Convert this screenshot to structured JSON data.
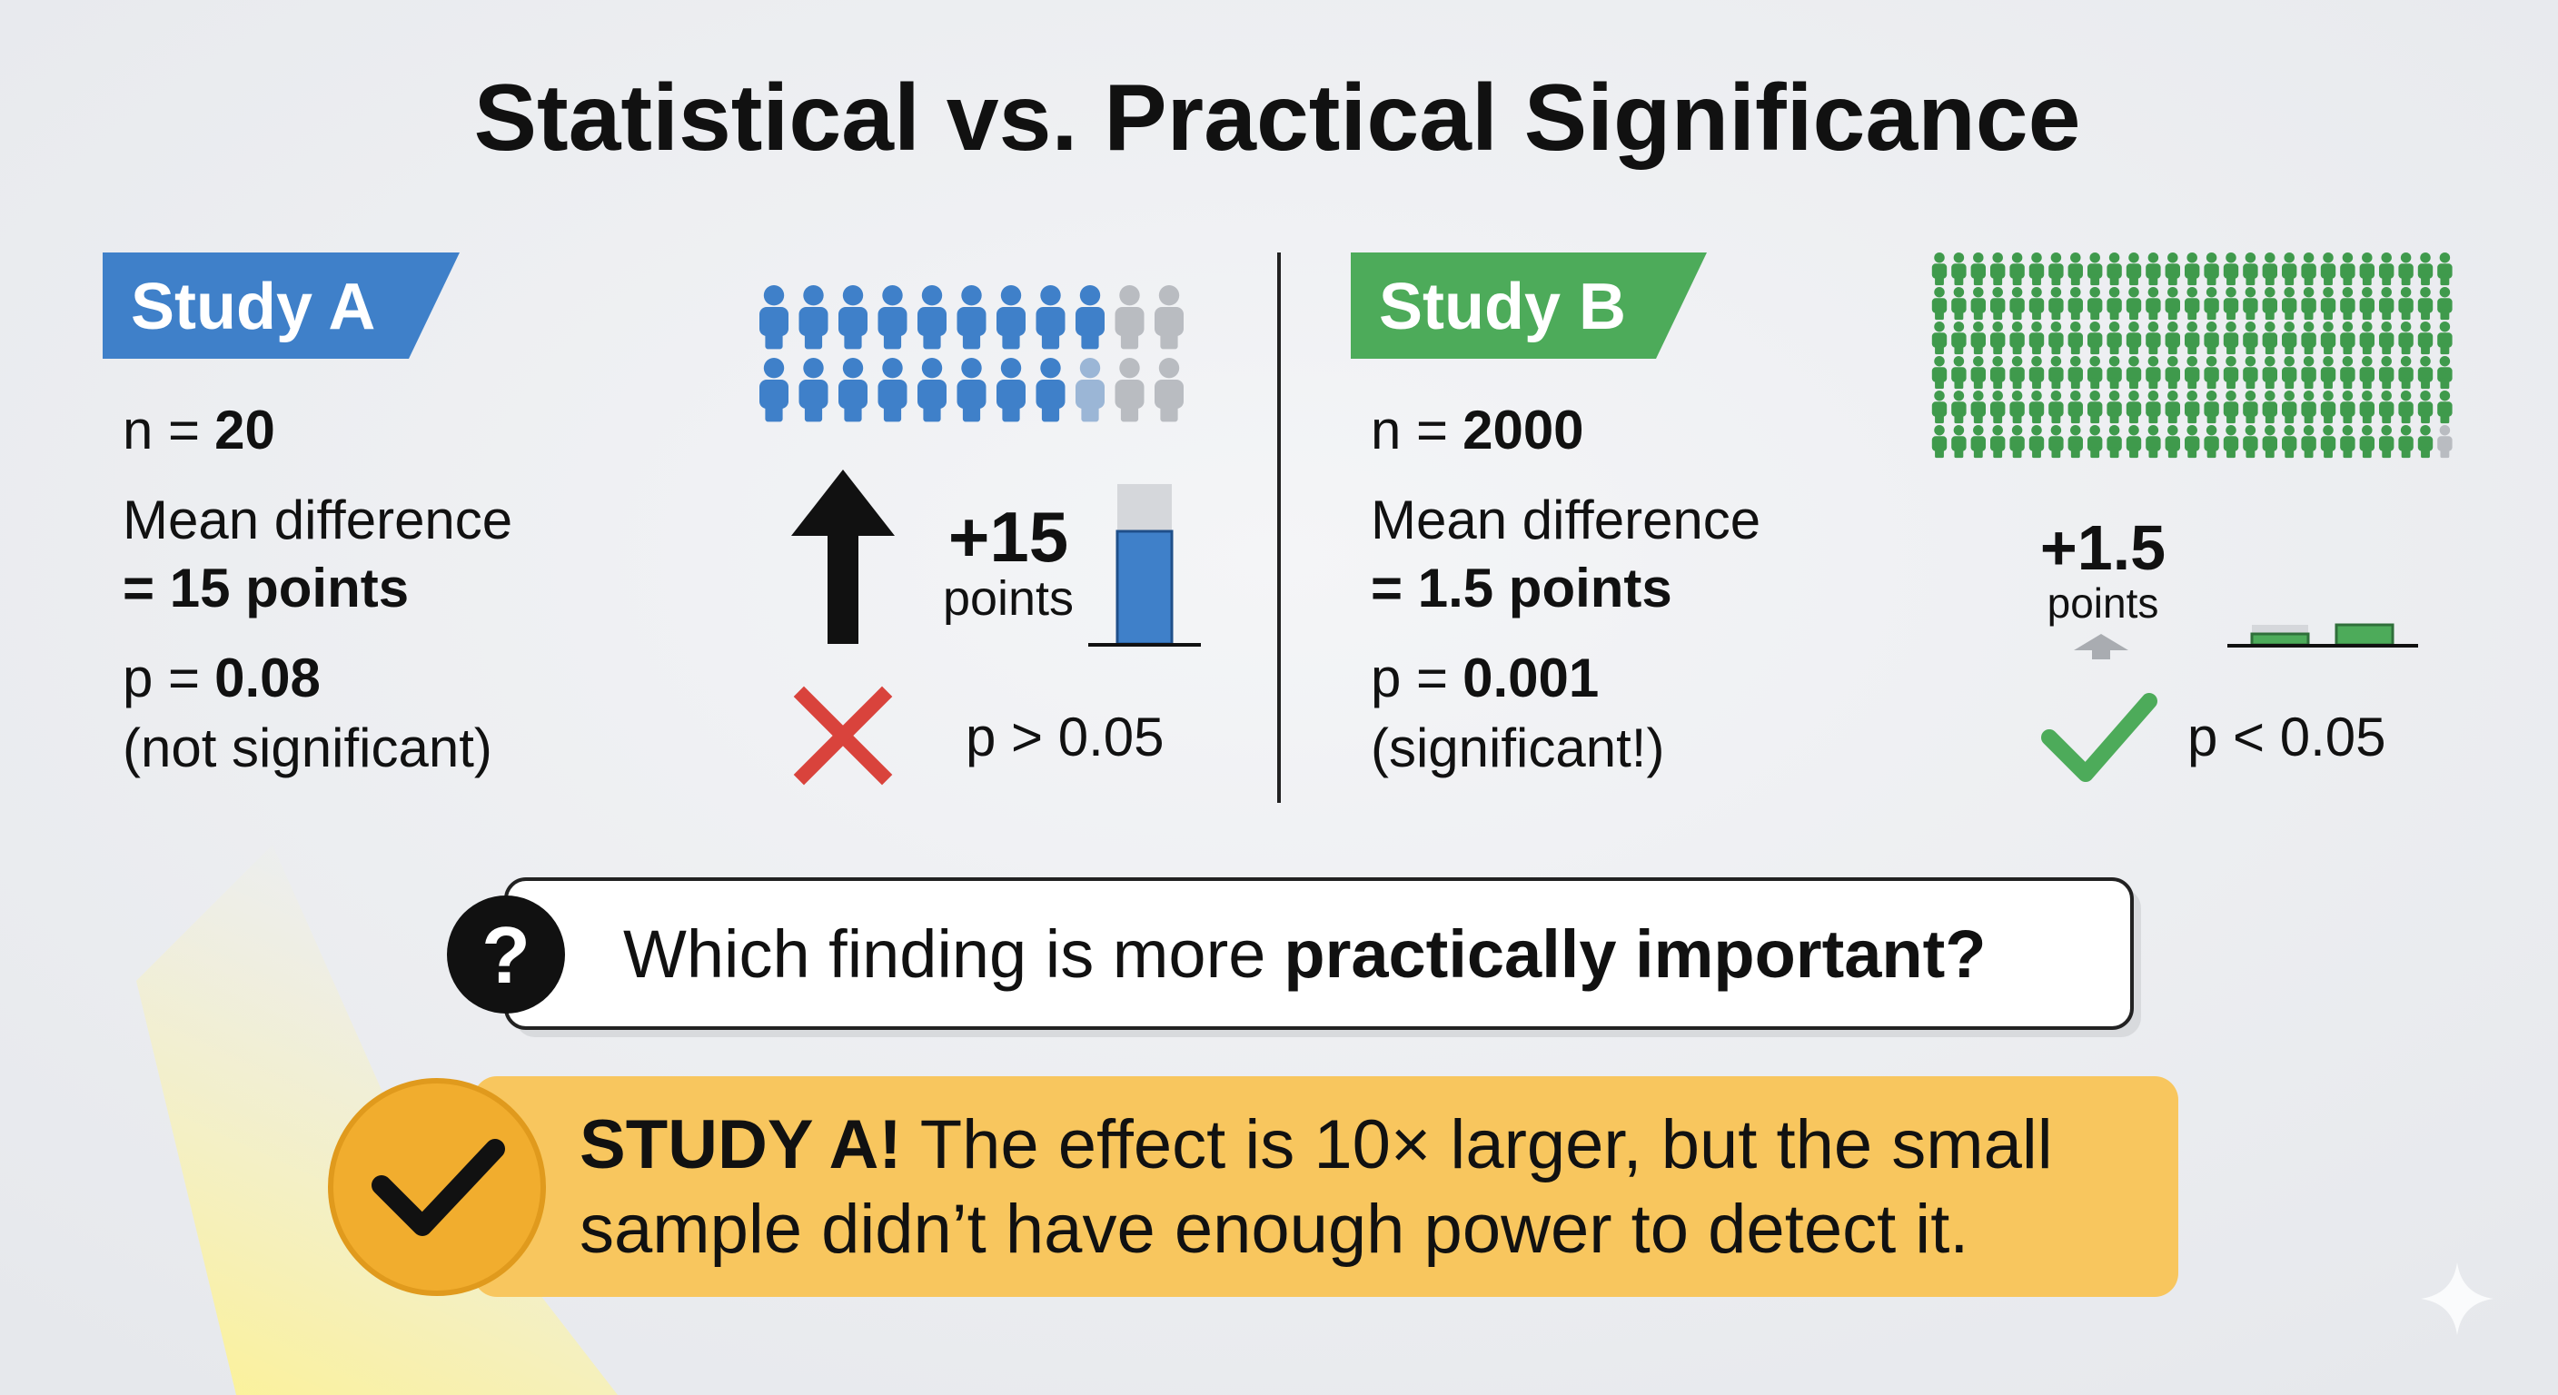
{
  "title": "Statistical vs. Practical Significance",
  "study_a": {
    "label": "Study A",
    "n_label": "n =",
    "n": "20",
    "mean_label": "Mean difference",
    "mean_value": "= 15 points",
    "p_label": "p =",
    "p": "0.08",
    "verdict": "(not significant)",
    "effect": "+15",
    "effect_unit": "points",
    "test": "p > 0.05"
  },
  "study_b": {
    "label": "Study B",
    "n_label": "n =",
    "n": "2000",
    "mean_label": "Mean difference",
    "mean_value": "= 1.5 points",
    "p_label": "p =",
    "p": "0.001",
    "verdict": "(significant!)",
    "effect": "+1.5",
    "effect_unit": "points",
    "test": "p < 0.05"
  },
  "question": {
    "icon": "?",
    "text": "Which finding is more",
    "emphasis": "practically important?"
  },
  "answer": {
    "emphasis": "STUDY A!",
    "line1": "The effect is 10× larger, but the small",
    "line2": "sample didn’t have enough power to detect it."
  }
}
